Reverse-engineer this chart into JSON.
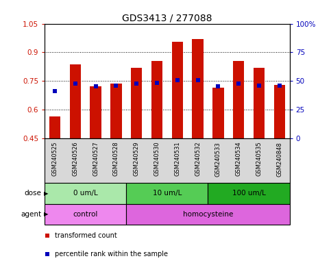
{
  "title": "GDS3413 / 277088",
  "samples": [
    "GSM240525",
    "GSM240526",
    "GSM240527",
    "GSM240528",
    "GSM240529",
    "GSM240530",
    "GSM240531",
    "GSM240532",
    "GSM240533",
    "GSM240534",
    "GSM240535",
    "GSM240848"
  ],
  "red_values": [
    0.565,
    0.835,
    0.72,
    0.735,
    0.82,
    0.855,
    0.955,
    0.97,
    0.715,
    0.855,
    0.82,
    0.73
  ],
  "blue_values": [
    0.695,
    0.735,
    0.72,
    0.725,
    0.735,
    0.74,
    0.755,
    0.755,
    0.72,
    0.735,
    0.725,
    0.725
  ],
  "ylim_left": [
    0.45,
    1.05
  ],
  "yticks_left": [
    0.45,
    0.6,
    0.75,
    0.9,
    1.05
  ],
  "ytick_labels_left": [
    "0.45",
    "0.6",
    "0.75",
    "0.9",
    "1.05"
  ],
  "yticks_right": [
    0.0,
    0.25,
    0.5,
    0.75,
    1.0
  ],
  "ytick_labels_right": [
    "0",
    "25",
    "50",
    "75",
    "100%"
  ],
  "gridlines": [
    0.6,
    0.75,
    0.9
  ],
  "dose_groups": [
    {
      "label": "0 um/L",
      "start": 0,
      "end": 4,
      "color": "#aae8aa"
    },
    {
      "label": "10 um/L",
      "start": 4,
      "end": 8,
      "color": "#55cc55"
    },
    {
      "label": "100 um/L",
      "start": 8,
      "end": 12,
      "color": "#22aa22"
    }
  ],
  "agent_groups": [
    {
      "label": "control",
      "start": 0,
      "end": 4,
      "color": "#ee88ee"
    },
    {
      "label": "homocysteine",
      "start": 4,
      "end": 12,
      "color": "#dd66dd"
    }
  ],
  "bar_color": "#cc1100",
  "dot_color": "#0000bb",
  "bar_bottom": 0.45,
  "title_fontsize": 10,
  "left_color": "#cc1100",
  "right_color": "#0000bb",
  "legend_items": [
    {
      "color": "#cc1100",
      "label": "transformed count"
    },
    {
      "color": "#0000bb",
      "label": "percentile rank within the sample"
    }
  ],
  "xtick_bg": "#d8d8d8"
}
